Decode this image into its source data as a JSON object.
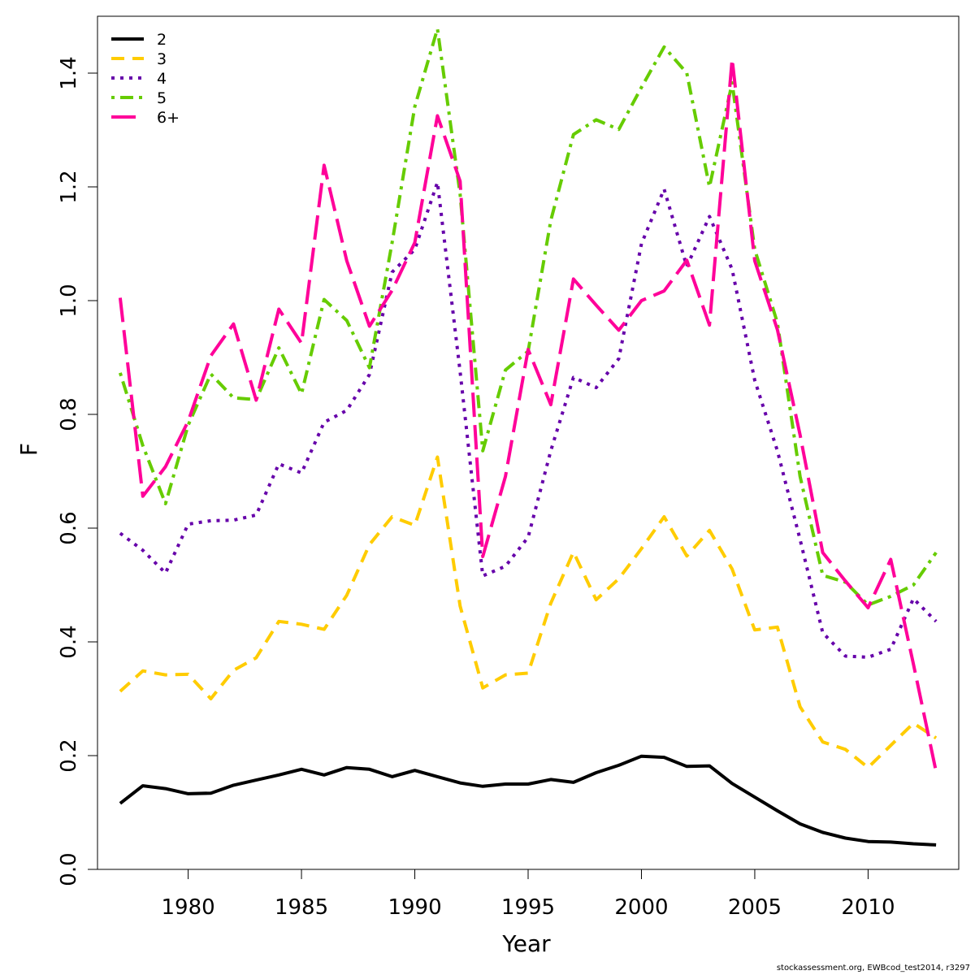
{
  "chart_data": {
    "type": "line",
    "title": "",
    "xlabel": "Year",
    "ylabel": "F",
    "xlim": [
      1976.0,
      2014.0
    ],
    "ylim": [
      0.0,
      1.5
    ],
    "x_ticks": [
      1980,
      1985,
      1990,
      1995,
      2000,
      2005,
      2010
    ],
    "x_tick_labels": [
      "1980",
      "1985",
      "1990",
      "1995",
      "2000",
      "2005",
      "2010"
    ],
    "y_ticks": [
      0.0,
      0.2,
      0.4,
      0.6,
      0.8,
      1.0,
      1.2,
      1.4
    ],
    "y_tick_labels": [
      "0.0",
      "0.2",
      "0.4",
      "0.6",
      "0.8",
      "1.0",
      "1.2",
      "1.4"
    ],
    "grid": false,
    "legend_position": "top-left",
    "x": [
      1977,
      1978,
      1979,
      1980,
      1981,
      1982,
      1983,
      1984,
      1985,
      1986,
      1987,
      1988,
      1989,
      1990,
      1991,
      1992,
      1993,
      1994,
      1995,
      1996,
      1997,
      1998,
      1999,
      2000,
      2001,
      2002,
      2003,
      2004,
      2005,
      2006,
      2007,
      2008,
      2009,
      2010,
      2011,
      2012,
      2013
    ],
    "series": [
      {
        "name": "2",
        "color": "#000000",
        "dash": "solid",
        "values": [
          0.116,
          0.147,
          0.142,
          0.133,
          0.134,
          0.148,
          0.157,
          0.166,
          0.176,
          0.166,
          0.179,
          0.176,
          0.163,
          0.174,
          0.163,
          0.152,
          0.146,
          0.15,
          0.15,
          0.158,
          0.153,
          0.17,
          0.183,
          0.199,
          0.197,
          0.181,
          0.182,
          0.151,
          0.127,
          0.103,
          0.08,
          0.065,
          0.055,
          0.049,
          0.048,
          0.045,
          0.043
        ]
      },
      {
        "name": "3",
        "color": "#FFCC00",
        "dash": "dashed",
        "values": [
          0.313,
          0.349,
          0.342,
          0.343,
          0.3,
          0.35,
          0.372,
          0.436,
          0.431,
          0.422,
          0.482,
          0.571,
          0.62,
          0.605,
          0.725,
          0.463,
          0.319,
          0.342,
          0.345,
          0.468,
          0.558,
          0.474,
          0.511,
          0.564,
          0.62,
          0.551,
          0.596,
          0.528,
          0.421,
          0.426,
          0.286,
          0.224,
          0.211,
          0.179,
          0.218,
          0.257,
          0.231
        ]
      },
      {
        "name": "4",
        "color": "#6600AA",
        "dash": "dotted",
        "values": [
          0.591,
          0.561,
          0.521,
          0.607,
          0.613,
          0.614,
          0.623,
          0.713,
          0.697,
          0.786,
          0.807,
          0.87,
          1.05,
          1.09,
          1.208,
          0.875,
          0.516,
          0.533,
          0.584,
          0.736,
          0.865,
          0.847,
          0.898,
          1.1,
          1.196,
          1.06,
          1.148,
          1.055,
          0.86,
          0.736,
          0.58,
          0.416,
          0.375,
          0.373,
          0.387,
          0.476,
          0.436
        ]
      },
      {
        "name": "5",
        "color": "#66CC00",
        "dash": "dotdash",
        "values": [
          0.873,
          0.745,
          0.643,
          0.781,
          0.871,
          0.829,
          0.826,
          0.917,
          0.836,
          1.002,
          0.965,
          0.882,
          1.102,
          1.341,
          1.478,
          1.187,
          0.736,
          0.878,
          0.911,
          1.141,
          1.292,
          1.318,
          1.301,
          1.375,
          1.446,
          1.4,
          1.2,
          1.383,
          1.09,
          0.961,
          0.691,
          0.517,
          0.505,
          0.465,
          0.48,
          0.5,
          0.557
        ]
      },
      {
        "name": "6+",
        "color": "#FF0099",
        "dash": "longdash",
        "values": [
          1.005,
          0.656,
          0.708,
          0.788,
          0.903,
          0.959,
          0.825,
          0.985,
          0.925,
          1.238,
          1.07,
          0.955,
          1.018,
          1.102,
          1.325,
          1.21,
          0.55,
          0.691,
          0.914,
          0.817,
          1.038,
          0.992,
          0.948,
          1.0,
          1.017,
          1.071,
          0.957,
          1.425,
          1.07,
          0.949,
          0.764,
          0.557,
          0.507,
          0.46,
          0.545,
          0.361,
          0.172
        ]
      }
    ]
  },
  "credit": "stockassessment.org, EWBcod_test2014, r3297"
}
